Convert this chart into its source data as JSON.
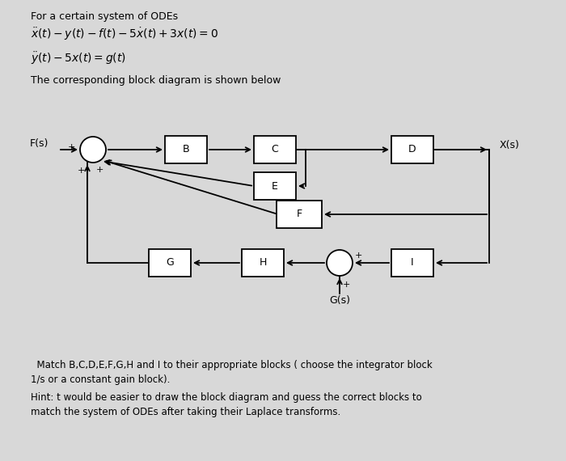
{
  "bg_color": "#d8d8d8",
  "title_text": "For a certain system of ODEs",
  "eq1": "$\\ddot{x}(t) - y(t) - f(t) - 5\\dot{x}(t) + 3x(t) = 0$",
  "eq2": "$\\ddot{y}(t) - 5x(t) = g(t)$",
  "subtitle": "The corresponding block diagram is shown below",
  "bottom_text1": "  Match B,C,D,E,F,G,H and I to their appropriate blocks ( choose the integrator block",
  "bottom_text2": "1/s or a constant gain block).",
  "bottom_text3": "Hint: t would be easier to draw the block diagram and guess the correct blocks to",
  "bottom_text4": "match the system of ODEs after taking their Laplace transforms.",
  "label_Fs": "F(s)",
  "label_Xs": "X(s)",
  "label_Gs": "G(s)"
}
